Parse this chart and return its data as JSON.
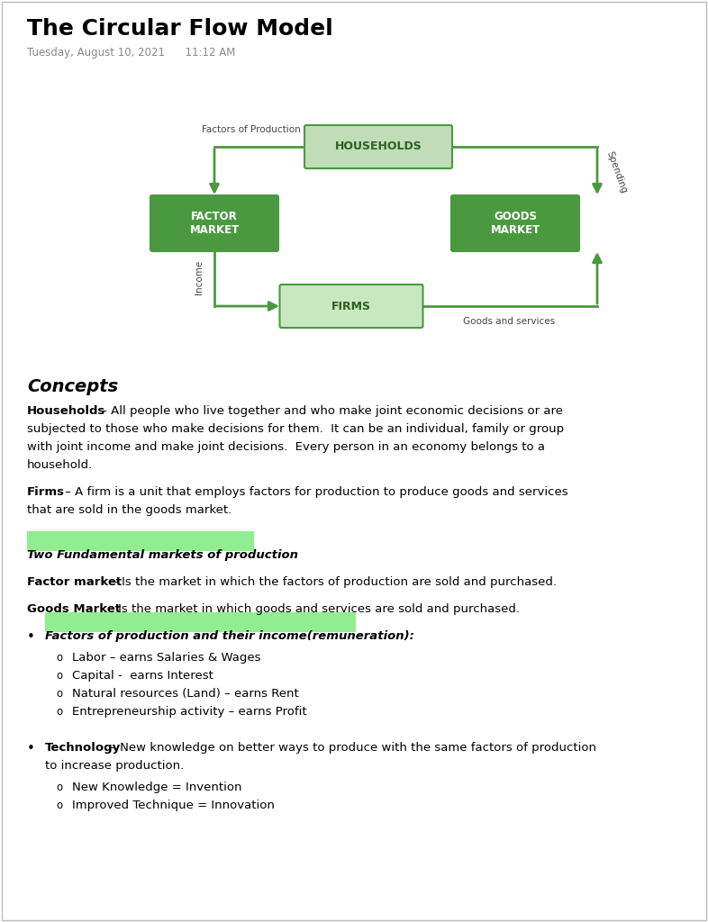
{
  "title": "The Circular Flow Model",
  "subtitle": "Tuesday, August 10, 2021      11:12 AM",
  "bg_color": "#ffffff",
  "green_dark": "#4a9940",
  "green_light": "#b8ddb0",
  "green_medium": "#c8e8c0",
  "highlight_color": "#90EE90",
  "arrow_color": "#4a9940",
  "highlighted_heading": "Two Fundamental markets of production",
  "bullet1_heading": "Factors of production and their income(remuneration):",
  "bullet1_items": [
    "Labor – earns Salaries & Wages",
    "Capital -  earns Interest",
    "Natural resources (Land) – earns Rent",
    "Entrepreneurship activity – earns Profit"
  ],
  "bullet2_bold": "Technology",
  "bullet2_rest": " – New knowledge on better ways to produce with the same factors of production to increase production.",
  "bullet2_items": [
    "New Knowledge = Invention",
    "Improved Technique = Innovation"
  ]
}
